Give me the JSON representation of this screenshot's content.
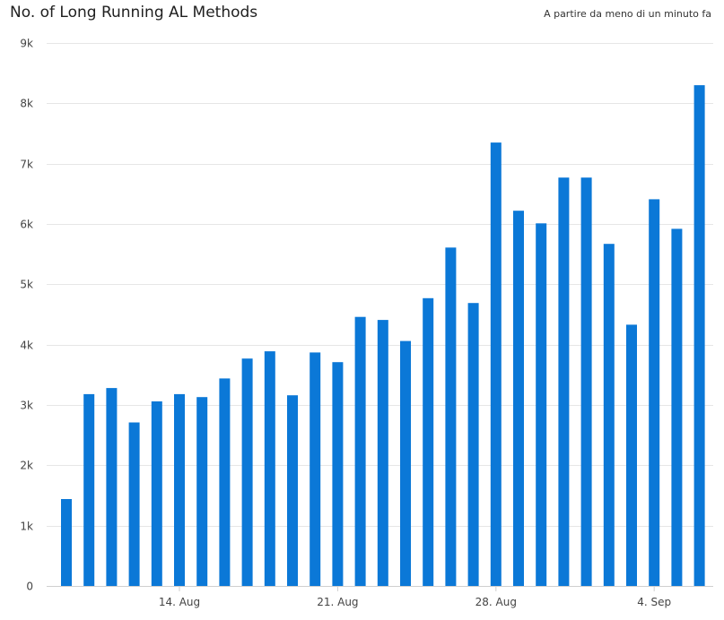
{
  "header": {
    "title": "No. of Long Running AL Methods",
    "subtitle": "A partire da meno di un minuto fa"
  },
  "colors": {
    "bar": "#0b78d7",
    "grid": "#e6e6e6",
    "axis": "#cfcfcf",
    "tick_text": "#444444"
  },
  "chart_data": {
    "type": "bar",
    "title": "No. of Long Running AL Methods",
    "xlabel": "",
    "ylabel": "",
    "ylim": [
      0,
      9000
    ],
    "grid": true,
    "yticks": [
      {
        "value": 0,
        "label": "0"
      },
      {
        "value": 1000,
        "label": "1k"
      },
      {
        "value": 2000,
        "label": "2k"
      },
      {
        "value": 3000,
        "label": "3k"
      },
      {
        "value": 4000,
        "label": "4k"
      },
      {
        "value": 5000,
        "label": "5k"
      },
      {
        "value": 6000,
        "label": "6k"
      },
      {
        "value": 7000,
        "label": "7k"
      },
      {
        "value": 8000,
        "label": "8k"
      },
      {
        "value": 9000,
        "label": "9k"
      }
    ],
    "categories": [
      "2023-08-09",
      "2023-08-10",
      "2023-08-11",
      "2023-08-12",
      "2023-08-13",
      "2023-08-14",
      "2023-08-15",
      "2023-08-16",
      "2023-08-17",
      "2023-08-18",
      "2023-08-19",
      "2023-08-20",
      "2023-08-21",
      "2023-08-22",
      "2023-08-23",
      "2023-08-24",
      "2023-08-25",
      "2023-08-26",
      "2023-08-27",
      "2023-08-28",
      "2023-08-29",
      "2023-08-30",
      "2023-08-31",
      "2023-09-01",
      "2023-09-02",
      "2023-09-03",
      "2023-09-04",
      "2023-09-05",
      "2023-09-06"
    ],
    "values": [
      1440,
      3180,
      3280,
      2710,
      3060,
      3180,
      3130,
      3440,
      3770,
      3890,
      3160,
      3870,
      3710,
      4460,
      4410,
      4060,
      4770,
      5610,
      4690,
      7350,
      6220,
      6010,
      6770,
      6770,
      5670,
      4330,
      6410,
      5920,
      8300
    ],
    "xticks": [
      {
        "category": "2023-08-14",
        "label": "14. Aug"
      },
      {
        "category": "2023-08-21",
        "label": "21. Aug"
      },
      {
        "category": "2023-08-28",
        "label": "28. Aug"
      },
      {
        "category": "2023-09-04",
        "label": "4. Sep"
      }
    ]
  }
}
